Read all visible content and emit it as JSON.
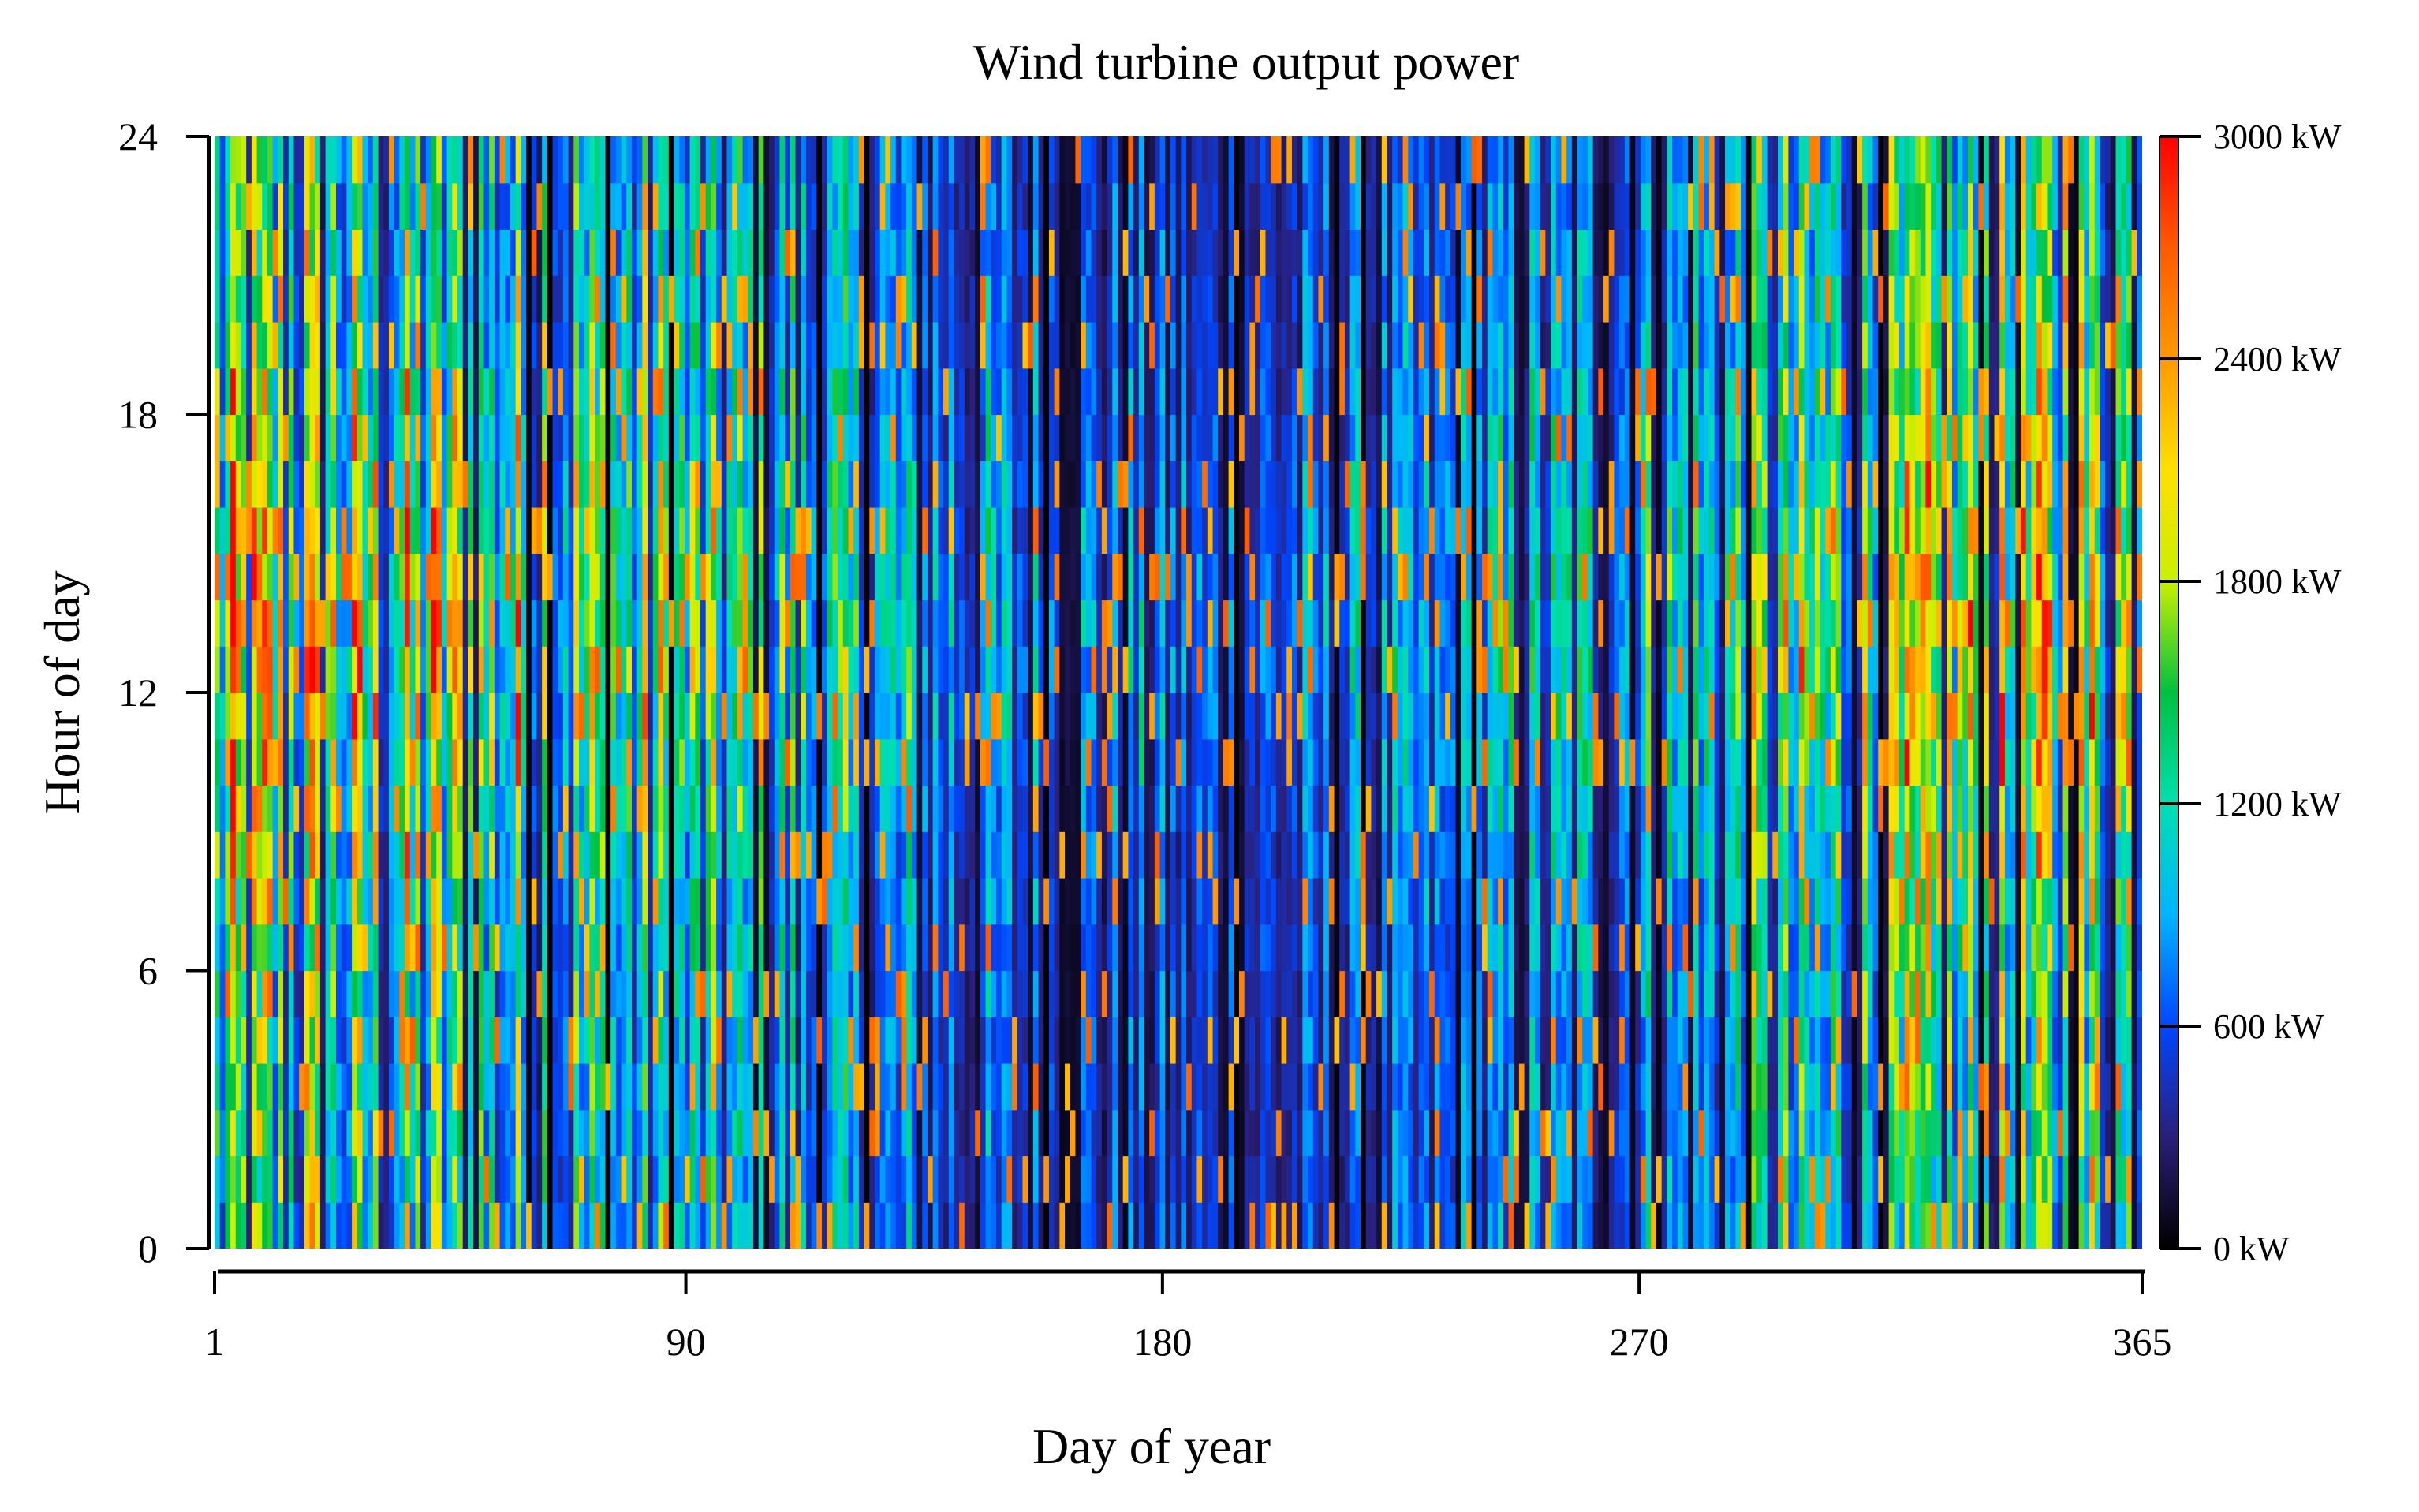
{
  "chart_data": {
    "type": "heatmap",
    "title": "Wind turbine output power",
    "xlabel": "Day of year",
    "ylabel": "Hour of day",
    "xlim": [
      1,
      365
    ],
    "ylim": [
      0,
      24
    ],
    "x_ticks": [
      1,
      90,
      180,
      270,
      365
    ],
    "x_tick_labels": [
      "1",
      "90",
      "180",
      "270",
      "365"
    ],
    "y_ticks": [
      0,
      6,
      12,
      18,
      24
    ],
    "y_tick_labels": [
      "0",
      "6",
      "12",
      "18",
      "24"
    ],
    "value_unit": "kW",
    "value_range": [
      0,
      3000
    ],
    "colorbar": {
      "ticks": [
        0,
        600,
        1200,
        1800,
        2400,
        3000
      ],
      "tick_labels": [
        "0 kW",
        "600 kW",
        "1200 kW",
        "1800 kW",
        "2400 kW",
        "3000 kW"
      ],
      "colors": [
        {
          "value": 0,
          "color": "#000000"
        },
        {
          "value": 300,
          "color": "#2a1f7a"
        },
        {
          "value": 600,
          "color": "#0046ff"
        },
        {
          "value": 900,
          "color": "#00b4ff"
        },
        {
          "value": 1200,
          "color": "#00e0b0"
        },
        {
          "value": 1500,
          "color": "#00c040"
        },
        {
          "value": 1800,
          "color": "#c8f000"
        },
        {
          "value": 2100,
          "color": "#ffe000"
        },
        {
          "value": 2400,
          "color": "#ff9900"
        },
        {
          "value": 2700,
          "color": "#ff5a00"
        },
        {
          "value": 3000,
          "color": "#ff0000"
        }
      ]
    },
    "grid": false
  }
}
